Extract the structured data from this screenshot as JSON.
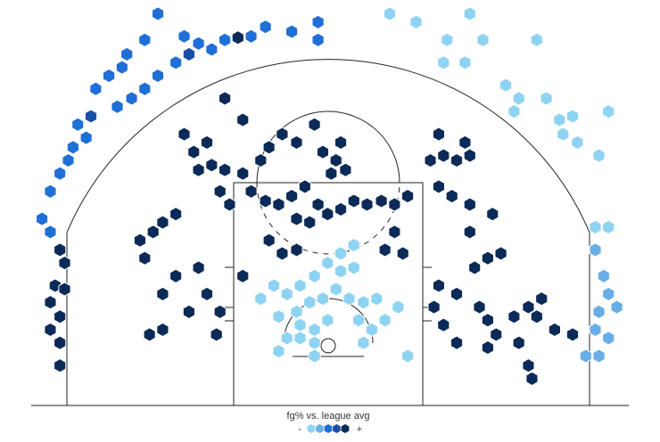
{
  "chart_data": {
    "type": "hexbin",
    "legend_title": "fg% vs. league avg",
    "legend_low": "-",
    "legend_high": "+",
    "colors": [
      "#8fd3f3",
      "#6aaee8",
      "#1f6fd6",
      "#1a4fa8",
      "#0b2a57"
    ],
    "xlim": [
      -250,
      250
    ],
    "ylim": [
      -52.5,
      287.5
    ],
    "x": [
      -144,
      -155,
      -122,
      -110,
      -99,
      -88,
      -77,
      -66,
      -54,
      -32,
      -10,
      -10,
      -170,
      -174,
      -185,
      -196,
      -178,
      -166,
      -155,
      -144,
      -129,
      -118,
      -200,
      -211,
      -204,
      -215,
      -219,
      -226,
      -234,
      -241,
      -234,
      50,
      72,
      117,
      98,
      113,
      95,
      128,
      173,
      147,
      158,
      181,
      154,
      192,
      203,
      195,
      207,
      233,
      225,
      222,
      233,
      222,
      229,
      233,
      225,
      240,
      222,
      233,
      214,
      225,
      -226,
      -222,
      -230,
      -222,
      -234,
      -226,
      -234,
      -226,
      -226,
      -122,
      -114,
      -110,
      -99,
      -88,
      -92,
      -84,
      -73,
      -66,
      -54,
      -43,
      -32,
      -21,
      -10,
      -17,
      -28,
      -2,
      9,
      20,
      31,
      43,
      54,
      65,
      54,
      46,
      61,
      -51,
      -40,
      -28,
      -6,
      5,
      1,
      13,
      9,
      -13,
      -28,
      -40,
      -51,
      -58,
      -73,
      -88,
      -103,
      -129,
      -140,
      -148,
      -159,
      -155,
      -129,
      -140,
      -110,
      -103,
      -92,
      -95,
      -118,
      -151,
      -140,
      -73,
      91,
      95,
      84,
      106,
      117,
      113,
      91,
      102,
      117,
      136,
      117,
      132,
      143,
      121,
      106,
      91,
      87,
      95,
      106,
      125,
      132,
      139,
      154,
      166,
      173,
      177,
      188,
      158,
      166,
      169,
      203,
      132,
      -47,
      -36,
      -25,
      -13,
      -2,
      9,
      20,
      -28,
      -17,
      -6,
      5,
      16,
      28,
      39,
      -25,
      -13,
      -2,
      24,
      35,
      46,
      57,
      -36,
      -25,
      -13,
      28,
      65,
      -13,
      -58,
      -43,
      9,
      20,
      -43
    ],
    "y": [
      276,
      254,
      257,
      251,
      246,
      254,
      256,
      257,
      265,
      261,
      269,
      254,
      242,
      231,
      224,
      213,
      198,
      205,
      213,
      224,
      235,
      242,
      190,
      183,
      172,
      164,
      153,
      142,
      127,
      104,
      93,
      276,
      269,
      276,
      254,
      235,
      235,
      254,
      254,
      216,
      205,
      205,
      194,
      187,
      190,
      175,
      168,
      194,
      157,
      97,
      97,
      78,
      56,
      41,
      26,
      30,
      11,
      4,
      -11,
      -11,
      78,
      67,
      48,
      45,
      34,
      22,
      11,
      0,
      -19,
      175,
      160,
      145,
      149,
      145,
      127,
      116,
      142,
      127,
      119,
      116,
      123,
      131,
      116,
      101,
      104,
      108,
      112,
      119,
      116,
      119,
      116,
      123,
      93,
      78,
      75,
      86,
      75,
      78,
      160,
      153,
      142,
      145,
      168,
      183,
      168,
      175,
      164,
      153,
      187,
      205,
      168,
      108,
      101,
      93,
      86,
      71,
      56,
      41,
      63,
      41,
      26,
      7,
      26,
      7,
      11,
      56,
      175,
      157,
      153,
      153,
      157,
      168,
      131,
      123,
      116,
      108,
      93,
      71,
      75,
      63,
      41,
      48,
      30,
      15,
      0,
      30,
      19,
      7,
      22,
      30,
      22,
      37,
      11,
      0,
      -19,
      -30,
      7,
      -4,
      48,
      41,
      48,
      56,
      67,
      60,
      63,
      26,
      34,
      37,
      45,
      37,
      34,
      37,
      15,
      11,
      19,
      19,
      11,
      19,
      30,
      4,
      4,
      0,
      0,
      -11,
      -11,
      37,
      22,
      75,
      82,
      -7
    ],
    "level": [
      3,
      3,
      3,
      3,
      3,
      3,
      5,
      3,
      3,
      3,
      3,
      3,
      3,
      3,
      3,
      3,
      3,
      3,
      3,
      3,
      3,
      4,
      4,
      3,
      3,
      3,
      3,
      3,
      3,
      3,
      3,
      1,
      1,
      1,
      1,
      1,
      1,
      1,
      1,
      1,
      1,
      1,
      1,
      1,
      1,
      1,
      1,
      1,
      1,
      1,
      1,
      2,
      2,
      2,
      2,
      2,
      2,
      2,
      2,
      2,
      5,
      5,
      5,
      5,
      5,
      5,
      5,
      5,
      5,
      5,
      5,
      5,
      5,
      5,
      5,
      5,
      5,
      5,
      5,
      5,
      5,
      5,
      5,
      5,
      5,
      5,
      5,
      5,
      5,
      5,
      5,
      5,
      5,
      5,
      5,
      5,
      5,
      5,
      5,
      5,
      5,
      5,
      5,
      5,
      5,
      5,
      5,
      5,
      5,
      5,
      5,
      5,
      5,
      5,
      5,
      5,
      5,
      5,
      5,
      5,
      5,
      5,
      5,
      5,
      5,
      5,
      5,
      5,
      5,
      5,
      5,
      5,
      5,
      5,
      5,
      5,
      5,
      5,
      5,
      5,
      5,
      5,
      5,
      5,
      5,
      5,
      5,
      5,
      5,
      5,
      5,
      5,
      5,
      5,
      5,
      5,
      5,
      5,
      1,
      1,
      1,
      1,
      1,
      1,
      1,
      1,
      1,
      1,
      1,
      1,
      1,
      1,
      1,
      1,
      1,
      1,
      1,
      1,
      1,
      1,
      1,
      1,
      1,
      1,
      1,
      1,
      1,
      1,
      1,
      1
    ]
  }
}
